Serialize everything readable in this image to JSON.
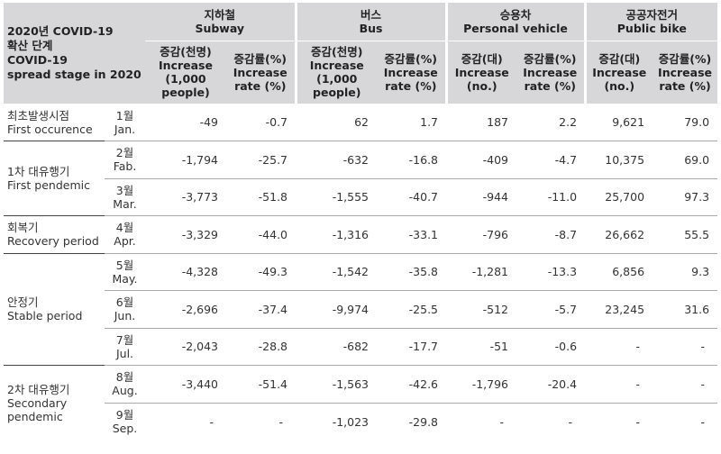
{
  "header": {
    "stage_head": [
      "2020년 COVID-19",
      "확산 단계",
      "COVID-19",
      "spread stage in 2020"
    ],
    "groups": [
      {
        "ko": "지하철",
        "en": "Subway"
      },
      {
        "ko": "버스",
        "en": "Bus"
      },
      {
        "ko": "승용차",
        "en": "Personal vehicle"
      },
      {
        "ko": "공공자전거",
        "en": "Public bike"
      }
    ],
    "sub": [
      [
        "증감(천명)",
        "Increase",
        "(1,000 people)"
      ],
      [
        "증감률(%)",
        "Increase",
        "rate (%)"
      ],
      [
        "증감(천명)",
        "Increase",
        "(1,000 people)"
      ],
      [
        "증감률(%)",
        "Increase",
        "rate (%)"
      ],
      [
        "증감(대)",
        "Increase",
        "(no.)"
      ],
      [
        "증감률(%)",
        "Increase",
        "rate (%)"
      ],
      [
        "증감(대)",
        "Increase",
        "(no.)"
      ],
      [
        "증감률(%)",
        "Increase",
        "rate (%)"
      ]
    ]
  },
  "stages": [
    {
      "ko": "최초발생시점",
      "en": [
        "First occurence"
      ]
    },
    {
      "ko": "1차 대유행기",
      "en": [
        "First pendemic"
      ]
    },
    {
      "ko": "회복기",
      "en": [
        "Recovery period"
      ]
    },
    {
      "ko": "안정기",
      "en": [
        "Stable period"
      ]
    },
    {
      "ko": "2차 대유행기",
      "en": [
        "Secondary",
        "pendemic"
      ]
    }
  ],
  "rows": [
    {
      "month_ko": "1월",
      "month_en": "Jan.",
      "values": [
        "-49",
        "-0.7",
        "62",
        "1.7",
        "187",
        "2.2",
        "9,621",
        "79.0"
      ]
    },
    {
      "month_ko": "2월",
      "month_en": "Fab.",
      "values": [
        "-1,794",
        "-25.7",
        "-632",
        "-16.8",
        "-409",
        "-4.7",
        "10,375",
        "69.0"
      ]
    },
    {
      "month_ko": "3월",
      "month_en": "Mar.",
      "values": [
        "-3,773",
        "-51.8",
        "-1,555",
        "-40.7",
        "-944",
        "-11.0",
        "25,700",
        "97.3"
      ]
    },
    {
      "month_ko": "4월",
      "month_en": "Apr.",
      "values": [
        "-3,329",
        "-44.0",
        "-1,316",
        "-33.1",
        "-796",
        "-8.7",
        "26,662",
        "55.5"
      ]
    },
    {
      "month_ko": "5월",
      "month_en": "May.",
      "values": [
        "-4,328",
        "-49.3",
        "-1,542",
        "-35.8",
        "-1,281",
        "-13.3",
        "6,856",
        "9.3"
      ]
    },
    {
      "month_ko": "6월",
      "month_en": "Jun.",
      "values": [
        "-2,696",
        "-37.4",
        "-9,974",
        "-25.5",
        "-512",
        "-5.7",
        "23,245",
        "31.6"
      ]
    },
    {
      "month_ko": "7월",
      "month_en": "Jul.",
      "values": [
        "-2,043",
        "-28.8",
        "-682",
        "-17.7",
        "-51",
        "-0.6",
        "-",
        "-"
      ]
    },
    {
      "month_ko": "8월",
      "month_en": "Aug.",
      "values": [
        "-3,440",
        "-51.4",
        "-1,563",
        "-42.6",
        "-1,796",
        "-20.4",
        "-",
        "-"
      ]
    },
    {
      "month_ko": "9월",
      "month_en": "Sep.",
      "values": [
        "-",
        "-",
        "-1,023",
        "-29.8",
        "-",
        "-",
        "-",
        "-"
      ]
    }
  ]
}
